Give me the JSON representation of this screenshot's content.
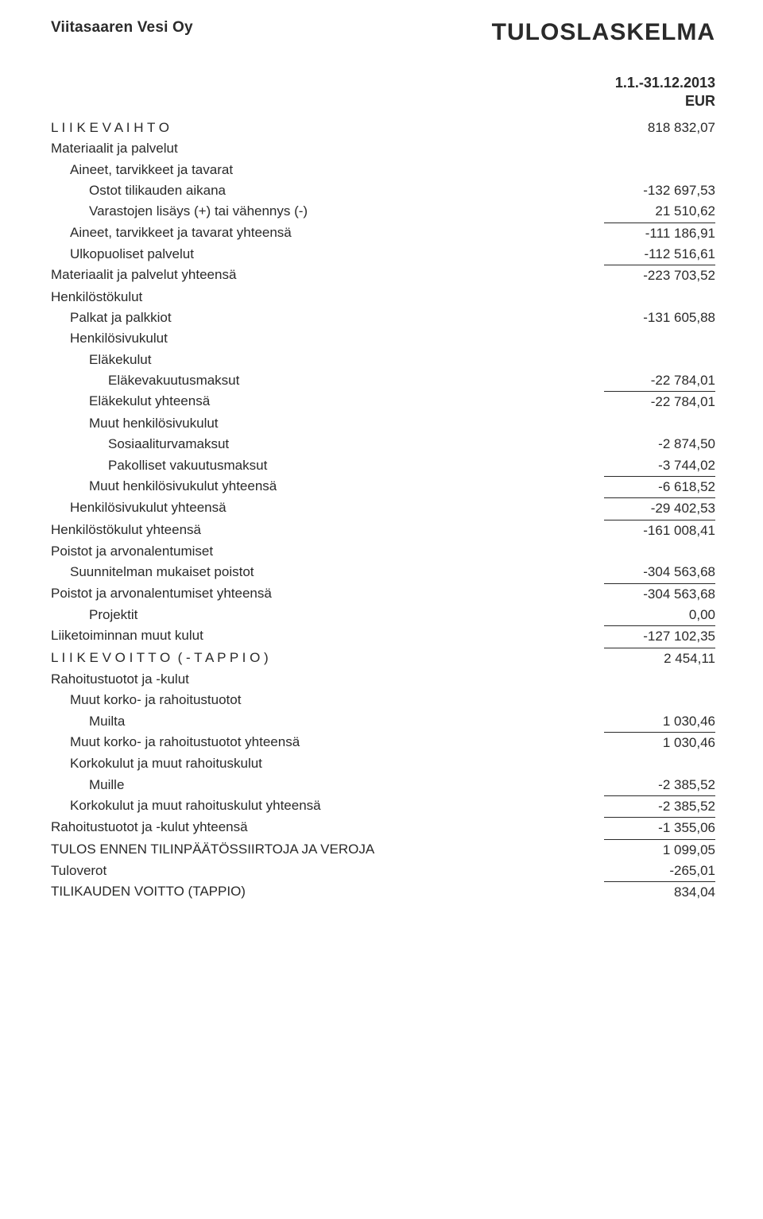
{
  "header": {
    "company": "Viitasaaren Vesi Oy",
    "title": "TULOSLASKELMA",
    "period": "1.1.-31.12.2013",
    "currency": "EUR"
  },
  "lines": [
    {
      "label": "L I I K E V A I H T O",
      "value": "818 832,07",
      "indent": 0
    },
    {
      "label": "Materiaalit ja palvelut",
      "value": "",
      "indent": 0
    },
    {
      "label": "Aineet, tarvikkeet ja tavarat",
      "value": "",
      "indent": 1
    },
    {
      "label": "Ostot tilikauden aikana",
      "value": "-132 697,53",
      "indent": 2
    },
    {
      "label": "Varastojen lisäys (+) tai vähennys (-)",
      "value": "21 510,62",
      "indent": 2
    },
    {
      "label": "Aineet, tarvikkeet ja tavarat yhteensä",
      "value": "-111 186,91",
      "indent": 1,
      "rule": true
    },
    {
      "label": "Ulkopuoliset palvelut",
      "value": "-112 516,61",
      "indent": 1
    },
    {
      "label": "Materiaalit ja palvelut yhteensä",
      "value": "-223 703,52",
      "indent": 0,
      "rule": true
    },
    {
      "label": "Henkilöstökulut",
      "value": "",
      "indent": 0
    },
    {
      "label": "Palkat ja palkkiot",
      "value": "-131 605,88",
      "indent": 1
    },
    {
      "label": "Henkilösivukulut",
      "value": "",
      "indent": 1
    },
    {
      "label": "Eläkekulut",
      "value": "",
      "indent": 2
    },
    {
      "label": "Eläkevakuutusmaksut",
      "value": "-22 784,01",
      "indent": 3
    },
    {
      "label": "Eläkekulut yhteensä",
      "value": "-22 784,01",
      "indent": 2,
      "rule": true
    },
    {
      "label": "Muut henkilösivukulut",
      "value": "",
      "indent": 2
    },
    {
      "label": "Sosiaaliturvamaksut",
      "value": "-2 874,50",
      "indent": 3
    },
    {
      "label": "Pakolliset vakuutusmaksut",
      "value": "-3 744,02",
      "indent": 3
    },
    {
      "label": "Muut henkilösivukulut yhteensä",
      "value": "-6 618,52",
      "indent": 2,
      "rule": true
    },
    {
      "label": "Henkilösivukulut yhteensä",
      "value": "-29 402,53",
      "indent": 1,
      "rule": true
    },
    {
      "label": "Henkilöstökulut yhteensä",
      "value": "-161 008,41",
      "indent": 0,
      "rule": true
    },
    {
      "label": "Poistot ja arvonalentumiset",
      "value": "",
      "indent": 0
    },
    {
      "label": "Suunnitelman mukaiset poistot",
      "value": "-304 563,68",
      "indent": 1
    },
    {
      "label": "Poistot ja arvonalentumiset yhteensä",
      "value": "-304 563,68",
      "indent": 0,
      "rule": true
    },
    {
      "label": "Projektit",
      "value": "0,00",
      "indent": 2
    },
    {
      "label": "Liiketoiminnan muut kulut",
      "value": "-127 102,35",
      "indent": 0,
      "rule": true
    },
    {
      "label": "L I I K E V O I T T O  ( - T A P P I O )",
      "value": "2 454,11",
      "indent": 0,
      "rule": true
    },
    {
      "label": "Rahoitustuotot ja -kulut",
      "value": "",
      "indent": 0
    },
    {
      "label": "Muut korko- ja rahoitustuotot",
      "value": "",
      "indent": 1
    },
    {
      "label": "Muilta",
      "value": "1 030,46",
      "indent": 2
    },
    {
      "label": "Muut korko- ja rahoitustuotot yhteensä",
      "value": "1 030,46",
      "indent": 1,
      "rule": true
    },
    {
      "label": "Korkokulut ja muut rahoituskulut",
      "value": "",
      "indent": 1
    },
    {
      "label": "Muille",
      "value": "-2 385,52",
      "indent": 2
    },
    {
      "label": "Korkokulut ja muut rahoituskulut yhteensä",
      "value": "-2 385,52",
      "indent": 1,
      "rule": true
    },
    {
      "label": "Rahoitustuotot ja -kulut yhteensä",
      "value": "-1 355,06",
      "indent": 0,
      "rule": true
    },
    {
      "label": "TULOS ENNEN TILINPÄÄTÖSSIIRTOJA JA VEROJA",
      "value": "1 099,05",
      "indent": 0,
      "rule": true
    },
    {
      "label": "Tuloverot",
      "value": "-265,01",
      "indent": 0
    },
    {
      "label": "TILIKAUDEN VOITTO (TAPPIO)",
      "value": "834,04",
      "indent": 0,
      "rule": true
    }
  ]
}
